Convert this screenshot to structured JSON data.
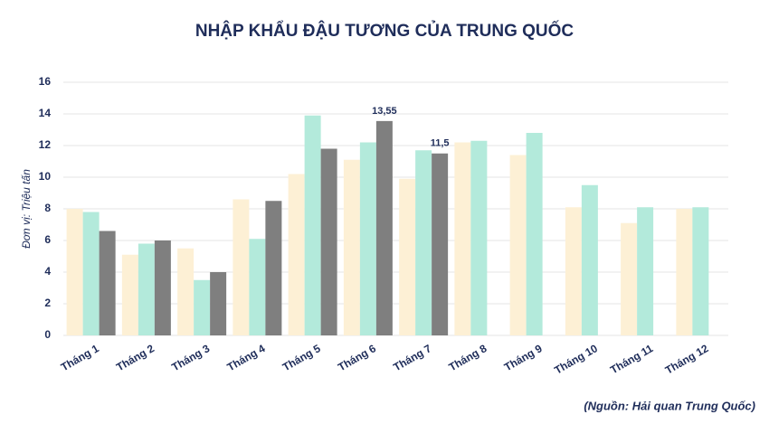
{
  "chart_data": {
    "type": "bar",
    "title": "NHẬP KHẨU ĐẬU TƯƠNG CỦA TRUNG QUỐC",
    "y_label": "Đơn vị: Triệu tấn",
    "source": "(Nguồn: Hải quan Trung Quốc)",
    "categories": [
      "Tháng 1",
      "Tháng 2",
      "Tháng 3",
      "Tháng 4",
      "Tháng 5",
      "Tháng 6",
      "Tháng 7",
      "Tháng 8",
      "Tháng 9",
      "Tháng 10",
      "Tháng 11",
      "Tháng 12"
    ],
    "series": [
      {
        "color": "#fdf0d5",
        "values": [
          8.0,
          5.1,
          5.5,
          8.6,
          10.2,
          11.1,
          9.9,
          12.2,
          11.4,
          8.1,
          7.1,
          8.0
        ]
      },
      {
        "color": "#b3eadb",
        "values": [
          7.8,
          5.8,
          3.5,
          6.1,
          13.9,
          12.2,
          11.7,
          12.3,
          12.8,
          9.5,
          8.1,
          8.1
        ]
      },
      {
        "color": "#7f7f7f",
        "values": [
          6.6,
          6.0,
          4.0,
          8.5,
          11.8,
          13.55,
          11.5,
          null,
          null,
          null,
          null,
          null
        ],
        "value_labels": [
          null,
          null,
          null,
          null,
          null,
          "13,55",
          "11,5",
          null,
          null,
          null,
          null,
          null
        ]
      }
    ],
    "ylim": [
      0,
      16
    ],
    "yticks": [
      0,
      2,
      4,
      6,
      8,
      10,
      12,
      14,
      16
    ],
    "grid": true
  }
}
